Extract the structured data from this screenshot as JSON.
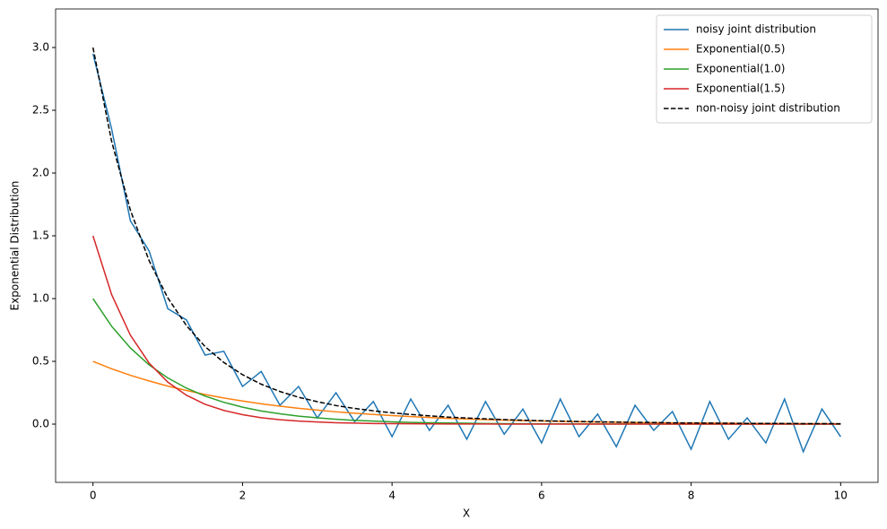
{
  "chart_data": {
    "type": "line",
    "xlabel": "X",
    "ylabel": "Exponential Distribution",
    "x": [
      0,
      0.25,
      0.5,
      0.75,
      1,
      1.25,
      1.5,
      1.75,
      2,
      2.25,
      2.5,
      2.75,
      3,
      3.25,
      3.5,
      3.75,
      4,
      4.25,
      4.5,
      4.75,
      5,
      5.25,
      5.5,
      5.75,
      6,
      6.25,
      6.5,
      6.75,
      7,
      7.25,
      7.5,
      7.75,
      8,
      8.25,
      8.5,
      8.75,
      9,
      9.25,
      9.5,
      9.75,
      10
    ],
    "series": [
      {
        "name": "noisy joint distribution",
        "color": "#1f77b4",
        "dashed": false,
        "values": [
          2.95,
          2.35,
          1.62,
          1.38,
          0.92,
          0.83,
          0.55,
          0.58,
          0.3,
          0.42,
          0.15,
          0.3,
          0.05,
          0.25,
          0.02,
          0.18,
          -0.1,
          0.2,
          -0.05,
          0.15,
          -0.12,
          0.18,
          -0.08,
          0.12,
          -0.15,
          0.2,
          -0.1,
          0.08,
          -0.18,
          0.15,
          -0.05,
          0.1,
          -0.2,
          0.18,
          -0.12,
          0.05,
          -0.15,
          0.2,
          -0.22,
          0.12,
          -0.1
        ]
      },
      {
        "name": "Exponential(0.5)",
        "color": "#ff7f0e",
        "dashed": false,
        "values": [
          0.5,
          0.441,
          0.389,
          0.344,
          0.303,
          0.268,
          0.236,
          0.208,
          0.184,
          0.162,
          0.143,
          0.126,
          0.112,
          0.098,
          0.087,
          0.077,
          0.068,
          0.06,
          0.053,
          0.046,
          0.041,
          0.036,
          0.032,
          0.028,
          0.025,
          0.022,
          0.019,
          0.017,
          0.015,
          0.013,
          0.012,
          0.01,
          0.009,
          0.008,
          0.007,
          0.006,
          0.006,
          0.005,
          0.004,
          0.004,
          0.003
        ]
      },
      {
        "name": "Exponential(1.0)",
        "color": "#2ca02c",
        "dashed": false,
        "values": [
          1,
          0.779,
          0.607,
          0.472,
          0.368,
          0.287,
          0.223,
          0.174,
          0.135,
          0.105,
          0.082,
          0.064,
          0.05,
          0.039,
          0.03,
          0.024,
          0.018,
          0.014,
          0.011,
          0.009,
          0.007,
          0.005,
          0.004,
          0.003,
          0.002,
          0.002,
          0.002,
          0.001,
          0.001,
          0.001,
          0.001,
          0,
          0,
          0,
          0,
          0,
          0,
          0,
          0,
          0,
          0
        ]
      },
      {
        "name": "Exponential(1.5)",
        "color": "#d62728",
        "dashed": false,
        "values": [
          1.5,
          1.031,
          0.709,
          0.487,
          0.335,
          0.23,
          0.158,
          0.109,
          0.075,
          0.051,
          0.035,
          0.024,
          0.017,
          0.011,
          0.008,
          0.005,
          0.004,
          0.003,
          0.002,
          0.001,
          0.001,
          0.001,
          0,
          0,
          0,
          0,
          0,
          0,
          0,
          0,
          0,
          0,
          0,
          0,
          0,
          0,
          0,
          0,
          0,
          0,
          0
        ]
      },
      {
        "name": "non-noisy joint distribution",
        "color": "#000000",
        "dashed": true,
        "values": [
          3.0,
          2.251,
          1.705,
          1.303,
          1.006,
          0.785,
          0.617,
          0.491,
          0.394,
          0.318,
          0.26,
          0.214,
          0.179,
          0.148,
          0.125,
          0.106,
          0.09,
          0.077,
          0.066,
          0.056,
          0.049,
          0.042,
          0.036,
          0.031,
          0.027,
          0.024,
          0.021,
          0.018,
          0.016,
          0.014,
          0.013,
          0.01,
          0.009,
          0.008,
          0.007,
          0.006,
          0.006,
          0.005,
          0.004,
          0.004,
          0.003
        ]
      }
    ],
    "xlim": [
      -0.5,
      10.5
    ],
    "xticks": [
      0,
      2,
      4,
      6,
      8,
      10
    ],
    "ylim": [
      -0.464,
      3.307
    ],
    "yticks": [
      {
        "value": 0,
        "label": "0.0"
      },
      {
        "value": 0.5,
        "label": "0.5"
      },
      {
        "value": 1,
        "label": "1.0"
      },
      {
        "value": 1.5,
        "label": "1.5"
      },
      {
        "value": 2,
        "label": "2.0"
      },
      {
        "value": 2.5,
        "label": "2.5"
      },
      {
        "value": 3,
        "label": "3.0"
      }
    ],
    "grid": false,
    "legend": "upper-right"
  }
}
